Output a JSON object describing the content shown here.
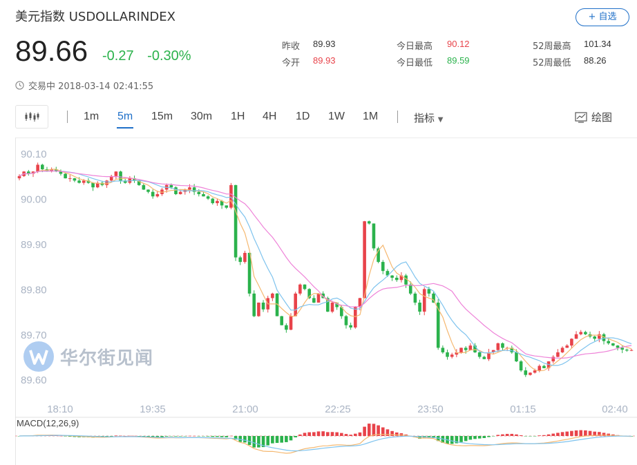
{
  "header": {
    "title": "美元指数  USDOLLARINDEX",
    "follow_label": "+ 自选",
    "price": "89.66",
    "change": "-0.27",
    "change_pct": "-0.30%",
    "status": "交易中 2018-03-14 02:41:55"
  },
  "stats": {
    "prev_close_label": "昨收",
    "prev_close": "89.93",
    "open_label": "今开",
    "open": "89.93",
    "high_label": "今日最高",
    "high": "90.12",
    "low_label": "今日最低",
    "low": "89.59",
    "wk52_high_label": "52周最高",
    "wk52_high": "101.34",
    "wk52_low_label": "52周最低",
    "wk52_low": "88.26"
  },
  "toolbar": {
    "periods": [
      "1m",
      "5m",
      "15m",
      "30m",
      "1H",
      "4H",
      "1D",
      "1W",
      "1M"
    ],
    "active_period": "5m",
    "indicator_label": "指标",
    "draw_label": "绘图"
  },
  "watermark": "华尔街见闻",
  "colors": {
    "up": "#e8434a",
    "down": "#2bb24c",
    "accent": "#1e6fc8",
    "ma_blue": "#7ec3ee",
    "ma_orange": "#f5b870",
    "ma_pink": "#ee82d8"
  },
  "chart_data": {
    "type": "candlestick",
    "y_ticks": [
      "90.10",
      "90.00",
      "89.90",
      "89.80",
      "89.70",
      "89.60"
    ],
    "ylim": [
      89.585,
      90.12
    ],
    "x_ticks": [
      "18:10",
      "19:35",
      "21:00",
      "22:25",
      "23:50",
      "01:15",
      "02:40"
    ],
    "macd_label": "MACD(12,26,9)",
    "closes": [
      90.05,
      90.06,
      90.055,
      90.06,
      90.075,
      90.065,
      90.06,
      90.065,
      90.06,
      90.055,
      90.045,
      90.045,
      90.04,
      90.035,
      90.04,
      90.035,
      90.025,
      90.035,
      90.03,
      90.04,
      90.05,
      90.06,
      90.04,
      90.035,
      90.045,
      90.04,
      90.03,
      90.02,
      90.015,
      90.005,
      90.01,
      90.02,
      90.03,
      90.025,
      90.01,
      90.015,
      90.02,
      90.025,
      90.015,
      90.01,
      90.005,
      90.0,
      89.99,
      89.995,
      89.985,
      89.98,
      90.03,
      89.87,
      89.86,
      89.88,
      89.79,
      89.74,
      89.77,
      89.755,
      89.78,
      89.79,
      89.74,
      89.72,
      89.71,
      89.74,
      89.79,
      89.81,
      89.8,
      89.78,
      89.77,
      89.79,
      89.78,
      89.75,
      89.77,
      89.76,
      89.74,
      89.72,
      89.715,
      89.76,
      89.78,
      89.95,
      89.945,
      89.89,
      89.86,
      89.84,
      89.83,
      89.825,
      89.82,
      89.83,
      89.81,
      89.79,
      89.77,
      89.75,
      89.8,
      89.79,
      89.77,
      89.67,
      89.66,
      89.65,
      89.655,
      89.66,
      89.67,
      89.665,
      89.675,
      89.66,
      89.65,
      89.645,
      89.66,
      89.665,
      89.68,
      89.67,
      89.67,
      89.66,
      89.64,
      89.62,
      89.61,
      89.615,
      89.62,
      89.63,
      89.625,
      89.64,
      89.65,
      89.66,
      89.67,
      89.675,
      89.69,
      89.7,
      89.705,
      89.7,
      89.695,
      89.69,
      89.7,
      89.685,
      89.68,
      89.675,
      89.67,
      89.666,
      89.664,
      89.665
    ]
  }
}
